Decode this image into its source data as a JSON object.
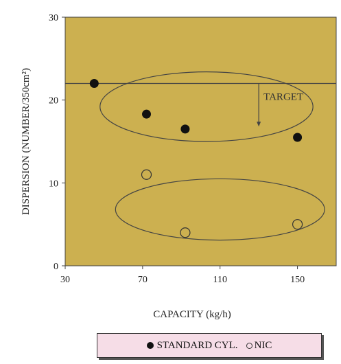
{
  "colors": {
    "plot_bg": "#ccb050",
    "frame": "#444444",
    "marker": "#111111",
    "legend_bg": "#f6dde7"
  },
  "chart_data": {
    "type": "scatter",
    "xlabel": "CAPACITY (kg/h)",
    "ylabel": "DISPERSION (NUMBER/350cm²)",
    "xlim": [
      30,
      170
    ],
    "ylim": [
      0,
      30
    ],
    "x_ticks": [
      30,
      70,
      110,
      150
    ],
    "x_tick_labels": [
      "30",
      "70",
      "110",
      "150"
    ],
    "y_ticks": [
      0,
      10,
      20,
      30
    ],
    "y_tick_labels": [
      "0",
      "10",
      "20",
      "30"
    ],
    "grid": false,
    "legend_position": "below",
    "series": [
      {
        "name": "STANDARD CYL.",
        "marker": "filled-circle",
        "points": [
          {
            "x": 45,
            "y": 22
          },
          {
            "x": 72,
            "y": 18.3
          },
          {
            "x": 92,
            "y": 16.5
          },
          {
            "x": 150,
            "y": 15.5
          }
        ]
      },
      {
        "name": "NIC",
        "marker": "open-circle",
        "points": [
          {
            "x": 72,
            "y": 11
          },
          {
            "x": 92,
            "y": 4
          },
          {
            "x": 150,
            "y": 5
          }
        ]
      }
    ],
    "target_line": {
      "y": 22,
      "label": "TARGET",
      "arrow_x": 130,
      "arrow_to_y": 16.8
    },
    "group_ellipses": [
      {
        "cx": 103,
        "cy": 19.2,
        "rx": 55,
        "ry": 4.2
      },
      {
        "cx": 110,
        "cy": 6.8,
        "rx": 54,
        "ry": 3.7
      }
    ]
  },
  "legend": {
    "items": [
      {
        "label": "STANDARD CYL.",
        "icon": "filled-circle-icon"
      },
      {
        "label": "NIC",
        "icon": "open-circle-icon"
      }
    ]
  }
}
